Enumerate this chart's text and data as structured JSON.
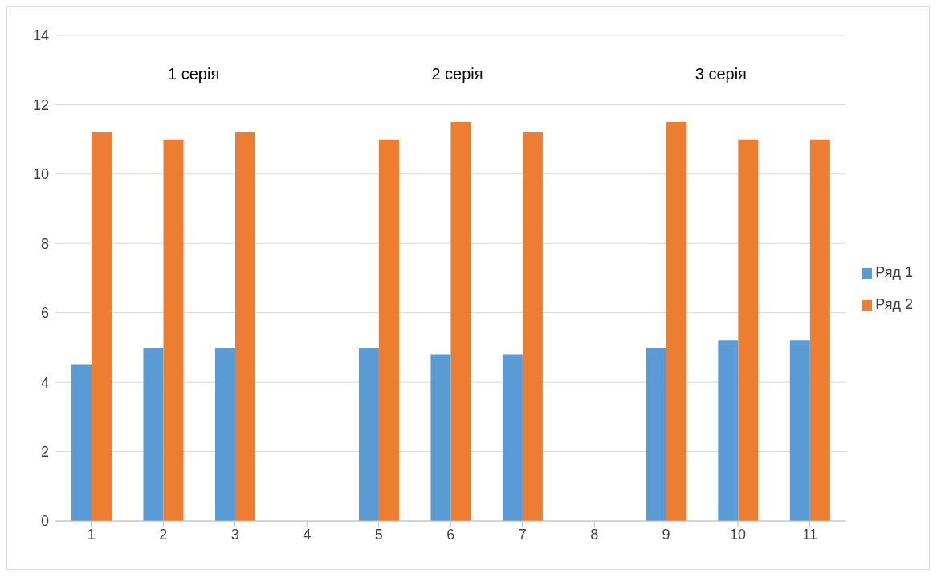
{
  "chart_data": {
    "type": "bar",
    "categories": [
      "1",
      "2",
      "3",
      "4",
      "5",
      "6",
      "7",
      "8",
      "9",
      "10",
      "11"
    ],
    "series": [
      {
        "name": "Ряд 1",
        "color": "#5b9bd5",
        "values": [
          4.5,
          5,
          5,
          null,
          5,
          4.8,
          4.8,
          null,
          5,
          5.2,
          5.2
        ]
      },
      {
        "name": "Ряд 2",
        "color": "#ed7d31",
        "values": [
          11.2,
          11,
          11.2,
          null,
          11,
          11.5,
          11.2,
          null,
          11.5,
          11,
          11
        ]
      }
    ],
    "ylim": [
      0,
      14
    ],
    "yticks": [
      0,
      2,
      4,
      6,
      8,
      10,
      12,
      14
    ],
    "grid": "y",
    "legend": "right",
    "annotations": [
      "1 серія",
      "2 серія",
      "3 серія"
    ]
  }
}
